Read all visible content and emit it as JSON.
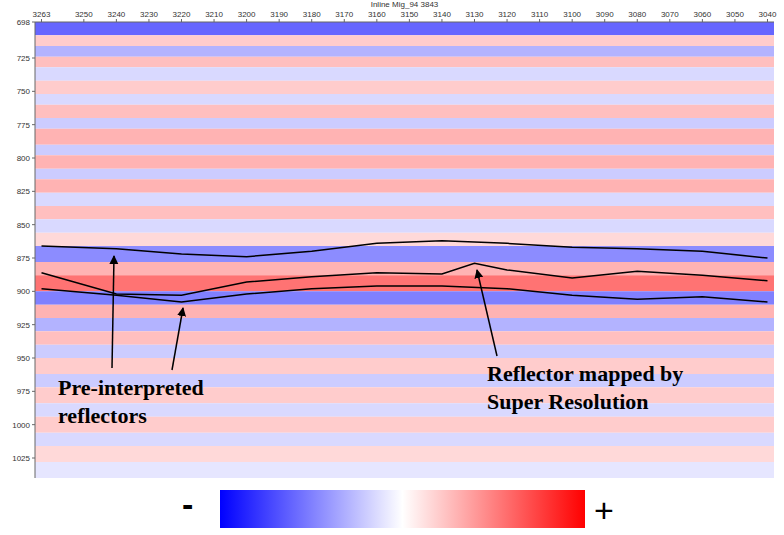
{
  "chart_data": {
    "type": "seismic",
    "title": "Inline Mig_94 3843",
    "xlim": [
      3265,
      3038
    ],
    "xticks": [
      3263,
      3250,
      3240,
      3230,
      3220,
      3210,
      3200,
      3190,
      3180,
      3170,
      3160,
      3150,
      3140,
      3130,
      3120,
      3110,
      3100,
      3090,
      3080,
      3070,
      3060,
      3050,
      3040
    ],
    "ylim": [
      698,
      1040
    ],
    "yticks": [
      698,
      725,
      750,
      775,
      800,
      825,
      850,
      875,
      900,
      925,
      950,
      975,
      1000,
      1025
    ],
    "grid": false,
    "colorbar": {
      "range": [
        -1,
        1
      ],
      "labels": [
        "-",
        "+"
      ]
    },
    "amplitude_bands": [
      {
        "from": 698,
        "to": 708,
        "amplitude": -0.6
      },
      {
        "from": 708,
        "to": 716,
        "amplitude": 0.2
      },
      {
        "from": 716,
        "to": 724,
        "amplitude": -0.3
      },
      {
        "from": 724,
        "to": 732,
        "amplitude": 0.25
      },
      {
        "from": 732,
        "to": 742,
        "amplitude": -0.15
      },
      {
        "from": 742,
        "to": 752,
        "amplitude": 0.2
      },
      {
        "from": 752,
        "to": 760,
        "amplitude": -0.15
      },
      {
        "from": 760,
        "to": 770,
        "amplitude": 0.25
      },
      {
        "from": 770,
        "to": 778,
        "amplitude": -0.2
      },
      {
        "from": 778,
        "to": 790,
        "amplitude": 0.3
      },
      {
        "from": 790,
        "to": 798,
        "amplitude": -0.2
      },
      {
        "from": 798,
        "to": 808,
        "amplitude": 0.3
      },
      {
        "from": 808,
        "to": 816,
        "amplitude": -0.2
      },
      {
        "from": 816,
        "to": 826,
        "amplitude": 0.3
      },
      {
        "from": 826,
        "to": 836,
        "amplitude": -0.15
      },
      {
        "from": 836,
        "to": 846,
        "amplitude": 0.25
      },
      {
        "from": 846,
        "to": 856,
        "amplitude": -0.15
      },
      {
        "from": 856,
        "to": 866,
        "amplitude": 0.15
      },
      {
        "from": 866,
        "to": 878,
        "amplitude": -0.45
      },
      {
        "from": 878,
        "to": 888,
        "amplitude": 0.3
      },
      {
        "from": 888,
        "to": 900,
        "amplitude": 0.55
      },
      {
        "from": 900,
        "to": 910,
        "amplitude": -0.5
      },
      {
        "from": 910,
        "to": 920,
        "amplitude": 0.3
      },
      {
        "from": 920,
        "to": 930,
        "amplitude": -0.3
      },
      {
        "from": 930,
        "to": 940,
        "amplitude": 0.25
      },
      {
        "from": 940,
        "to": 950,
        "amplitude": -0.2
      },
      {
        "from": 950,
        "to": 962,
        "amplitude": 0.2
      },
      {
        "from": 962,
        "to": 972,
        "amplitude": -0.2
      },
      {
        "from": 972,
        "to": 984,
        "amplitude": 0.2
      },
      {
        "from": 984,
        "to": 994,
        "amplitude": -0.15
      },
      {
        "from": 994,
        "to": 1006,
        "amplitude": 0.2
      },
      {
        "from": 1006,
        "to": 1016,
        "amplitude": -0.15
      },
      {
        "from": 1016,
        "to": 1028,
        "amplitude": 0.15
      },
      {
        "from": 1028,
        "to": 1040,
        "amplitude": -0.1
      }
    ],
    "series": [
      {
        "name": "Pre-interpreted reflectors",
        "color": "#000000",
        "x": [
          3263,
          3240,
          3220,
          3200,
          3180,
          3160,
          3140,
          3120,
          3100,
          3080,
          3060,
          3040
        ],
        "values": [
          866,
          868,
          872,
          874,
          870,
          864,
          862,
          864,
          867,
          868,
          870,
          875
        ]
      },
      {
        "name": "Reflector mapped by Super Resolution",
        "color": "#000000",
        "x": [
          3263,
          3240,
          3220,
          3200,
          3180,
          3160,
          3140,
          3130,
          3120,
          3100,
          3080,
          3060,
          3040
        ],
        "values": [
          886,
          902,
          903,
          893,
          889,
          886,
          887,
          879,
          884,
          890,
          885,
          888,
          892
        ]
      },
      {
        "name": "Pre-interpreted reflectors",
        "color": "#000000",
        "x": [
          3263,
          3240,
          3220,
          3200,
          3180,
          3160,
          3140,
          3120,
          3100,
          3080,
          3060,
          3040
        ],
        "values": [
          898,
          903,
          908,
          902,
          898,
          896,
          896,
          898,
          903,
          906,
          904,
          908
        ]
      }
    ]
  }
}
